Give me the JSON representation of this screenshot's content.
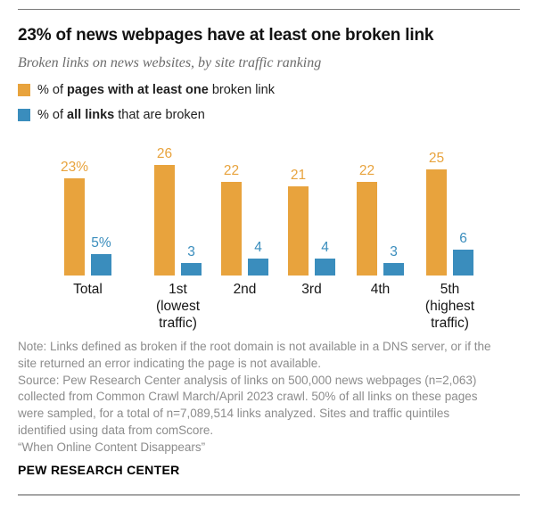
{
  "header": {
    "title": "23% of news webpages have at least one broken link",
    "subtitle": "Broken links on news websites, by site traffic ranking"
  },
  "legend": {
    "items": [
      {
        "prefix": "% of ",
        "bold": "pages with at least one",
        "suffix": " broken link",
        "color": "#E8A33D"
      },
      {
        "prefix": "% of ",
        "bold": "all links",
        "suffix": " that are broken",
        "color": "#3A8DBD"
      }
    ]
  },
  "chart_data": {
    "type": "bar",
    "title": "23% of news webpages have at least one broken link",
    "subtitle": "Broken links on news websites, by site traffic ranking",
    "categories": [
      "Total",
      "1st (lowest traffic)",
      "2nd",
      "3rd",
      "4th",
      "5th (highest traffic)"
    ],
    "category_lines": [
      [
        "Total"
      ],
      [
        "1st",
        "(lowest",
        "traffic)"
      ],
      [
        "2nd"
      ],
      [
        "3rd"
      ],
      [
        "4th"
      ],
      [
        "5th",
        "(highest",
        "traffic)"
      ]
    ],
    "series": [
      {
        "name": "% of pages with at least one broken link",
        "color": "#E8A33D",
        "values": [
          23,
          26,
          22,
          21,
          22,
          25
        ],
        "labels": [
          "23%",
          "26",
          "22",
          "21",
          "22",
          "25"
        ]
      },
      {
        "name": "% of all links that are broken",
        "color": "#3A8DBD",
        "values": [
          5,
          3,
          4,
          4,
          3,
          6
        ],
        "labels": [
          "5%",
          "3",
          "4",
          "4",
          "3",
          "6"
        ]
      }
    ],
    "ylim": [
      0,
      28
    ],
    "grid": false,
    "axes": "none (value labels above bars)",
    "legend_position": "top-left"
  },
  "notes": {
    "lines": [
      "Note: Links defined as broken if the root domain is not available in a DNS server, or if the",
      "site returned an error indicating the page is not available.",
      "Source: Pew Research Center analysis of links on 500,000 news webpages (n=2,063)",
      "collected from Common Crawl March/April 2023 crawl. 50% of all links on these pages",
      "were sampled, for a total of n=7,089,514 links analyzed. Sites and traffic quintiles",
      "identified using data from comScore.",
      "“When Online Content Disappears”"
    ]
  },
  "footer": {
    "brand": "PEW RESEARCH CENTER"
  },
  "colors": {
    "orange": "#E8A33D",
    "blue": "#3A8DBD",
    "rule_top": "#7a7a7a",
    "rule_bottom": "#a6a6a6"
  }
}
